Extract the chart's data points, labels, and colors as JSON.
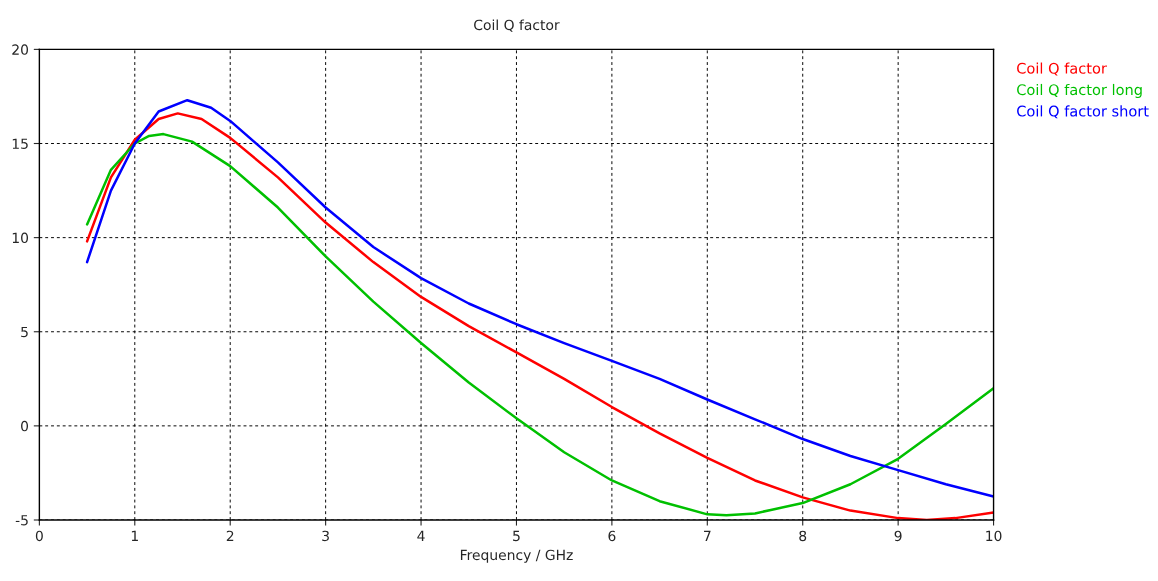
{
  "chart_data": {
    "type": "line",
    "title": "Coil Q factor",
    "xlabel": "Frequency / GHz",
    "xlim": [
      0,
      10
    ],
    "xticks": [
      0,
      1,
      2,
      3,
      4,
      5,
      6,
      7,
      8,
      9,
      10
    ],
    "ylim": [
      -5,
      20
    ],
    "yticks": [
      -5,
      0,
      5,
      10,
      15,
      20
    ],
    "grid": true,
    "legend": "right",
    "line_style": "solid",
    "marker": "none",
    "series": [
      {
        "name": "Coil Q factor",
        "color": "#ff0000",
        "x": [
          0.5,
          0.75,
          1.0,
          1.25,
          1.45,
          1.7,
          2.0,
          2.5,
          3.0,
          3.5,
          4.0,
          4.5,
          5.0,
          5.5,
          6.0,
          6.5,
          7.0,
          7.5,
          8.0,
          8.5,
          9.0,
          9.3,
          9.6,
          10.0
        ],
        "values": [
          9.8,
          13.2,
          15.2,
          16.3,
          16.6,
          16.3,
          15.3,
          13.2,
          10.8,
          8.7,
          6.85,
          5.3,
          3.9,
          2.5,
          1.0,
          -0.4,
          -1.7,
          -2.9,
          -3.8,
          -4.5,
          -4.9,
          -5.0,
          -4.9,
          -4.6
        ]
      },
      {
        "name": "Coil Q factor long",
        "color": "#00c000",
        "x": [
          0.5,
          0.75,
          1.0,
          1.15,
          1.3,
          1.6,
          2.0,
          2.5,
          3.0,
          3.5,
          4.0,
          4.5,
          5.0,
          5.5,
          6.0,
          6.5,
          7.0,
          7.2,
          7.5,
          8.0,
          8.5,
          9.0,
          9.5,
          10.0
        ],
        "values": [
          10.7,
          13.6,
          15.0,
          15.4,
          15.5,
          15.1,
          13.8,
          11.6,
          9.0,
          6.6,
          4.4,
          2.3,
          0.4,
          -1.4,
          -2.9,
          -4.0,
          -4.7,
          -4.75,
          -4.65,
          -4.1,
          -3.1,
          -1.75,
          0.1,
          2.0
        ]
      },
      {
        "name": "Coil Q factor short",
        "color": "#0000ff",
        "x": [
          0.5,
          0.75,
          1.0,
          1.25,
          1.55,
          1.8,
          2.0,
          2.5,
          3.0,
          3.5,
          4.0,
          4.5,
          5.0,
          5.5,
          6.0,
          6.5,
          7.0,
          7.5,
          8.0,
          8.5,
          9.0,
          9.5,
          10.0
        ],
        "values": [
          8.7,
          12.5,
          15.0,
          16.7,
          17.3,
          16.9,
          16.2,
          14.0,
          11.6,
          9.5,
          7.85,
          6.5,
          5.4,
          4.4,
          3.45,
          2.5,
          1.4,
          0.35,
          -0.7,
          -1.6,
          -2.35,
          -3.1,
          -3.75
        ]
      }
    ]
  }
}
